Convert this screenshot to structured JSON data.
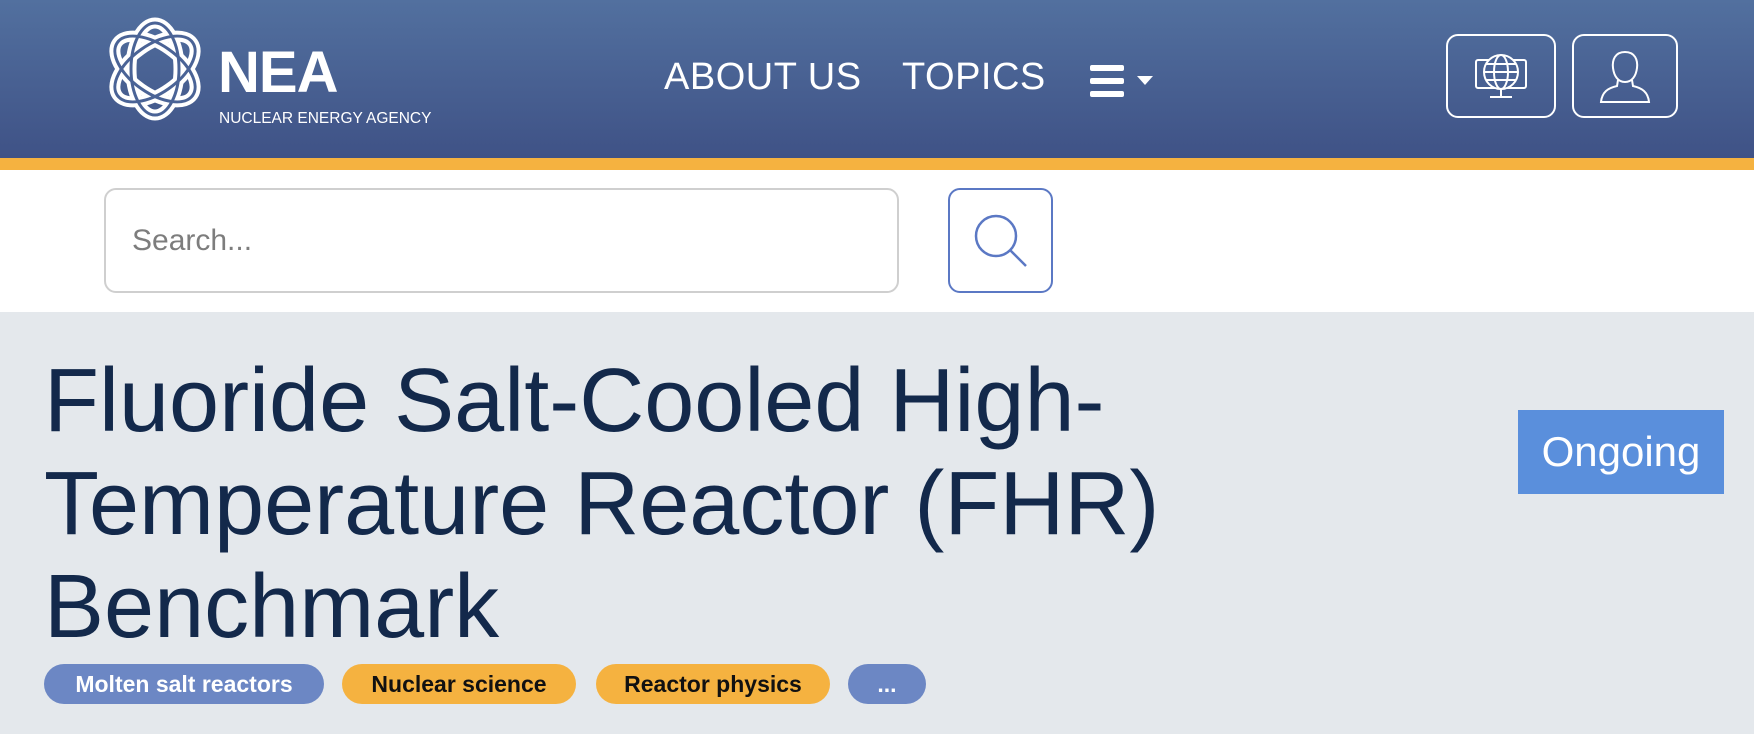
{
  "header": {
    "logo": {
      "name": "NEA",
      "subtitle": "NUCLEAR ENERGY AGENCY"
    },
    "nav": [
      {
        "label": "ABOUT US"
      },
      {
        "label": "TOPICS"
      }
    ],
    "menu_icon": "hamburger-menu-icon",
    "language_icon": "globe-monitor-icon",
    "account_icon": "user-icon"
  },
  "search": {
    "placeholder": "Search...",
    "value": "",
    "button_icon": "search-icon"
  },
  "main": {
    "title": "Fluoride Salt-Cooled High-Temperature Reactor (FHR) Benchmark",
    "status": "Ongoing",
    "tags": [
      {
        "label": "Molten salt reactors"
      },
      {
        "label": "Nuclear science"
      },
      {
        "label": "Reactor physics"
      },
      {
        "label": "..."
      }
    ]
  },
  "colors": {
    "header": "#4a6396",
    "accent": "#f5b240",
    "title": "#13294b",
    "status_badge": "#5a8fdc",
    "tag_blue": "#6c87c4",
    "tag_yellow": "#f5b240",
    "background": "#e4e8ec"
  }
}
